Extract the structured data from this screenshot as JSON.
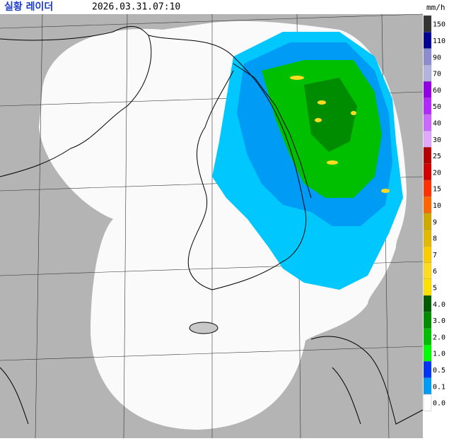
{
  "header": {
    "title": "실황 레이더",
    "time": "2026.03.31.07:10"
  },
  "legend": {
    "unit": "mm/h",
    "items": [
      {
        "label": "150",
        "color": "#333333"
      },
      {
        "label": "110",
        "color": "#000390"
      },
      {
        "label": "90",
        "color": "#8c8cd0"
      },
      {
        "label": "70",
        "color": "#b3b4de"
      },
      {
        "label": "60",
        "color": "#9300e4"
      },
      {
        "label": "50",
        "color": "#b229ff"
      },
      {
        "label": "40",
        "color": "#c969ff"
      },
      {
        "label": "30",
        "color": "#e0a9ff"
      },
      {
        "label": "25",
        "color": "#b40000"
      },
      {
        "label": "20",
        "color": "#d20000"
      },
      {
        "label": "15",
        "color": "#ff3200"
      },
      {
        "label": "10",
        "color": "#ff6600"
      },
      {
        "label": "9",
        "color": "#ccaa00"
      },
      {
        "label": "8",
        "color": "#e0b900"
      },
      {
        "label": "7",
        "color": "#f9cd00"
      },
      {
        "label": "6",
        "color": "#ffdc1f"
      },
      {
        "label": "5",
        "color": "#ffe100"
      },
      {
        "label": "4.0",
        "color": "#005a00"
      },
      {
        "label": "3.0",
        "color": "#008c00"
      },
      {
        "label": "2.0",
        "color": "#00be00"
      },
      {
        "label": "1.0",
        "color": "#00ff00"
      },
      {
        "label": "0.5",
        "color": "#0033f5"
      },
      {
        "label": "0.1",
        "color": "#009bf5"
      },
      {
        "label": "0.0",
        "color": "#ffffff"
      }
    ]
  }
}
